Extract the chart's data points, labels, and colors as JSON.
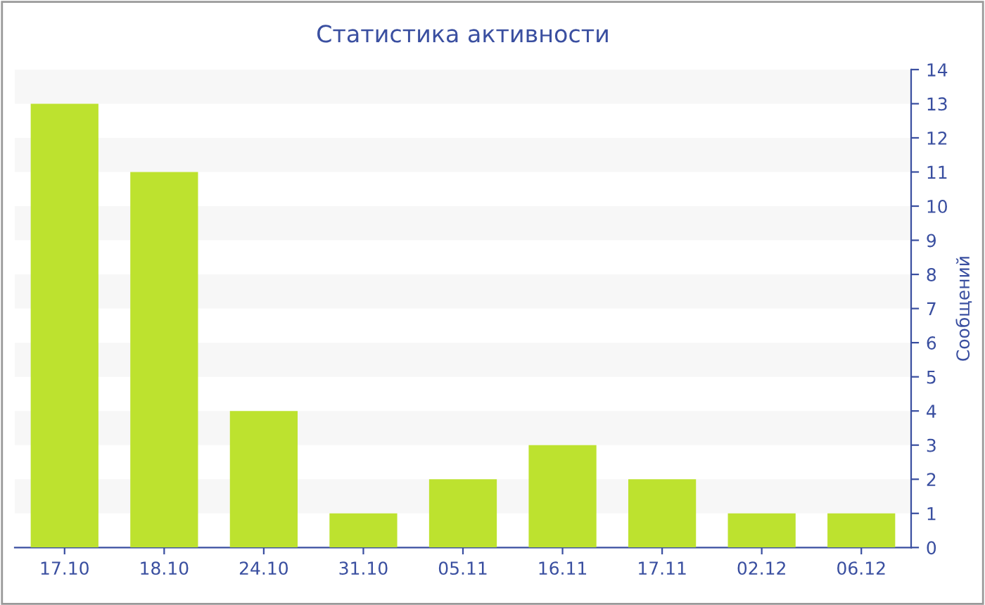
{
  "chart_data": {
    "type": "bar",
    "title": "Статистика активности",
    "ylabel": "Сообщений",
    "categories": [
      "17.10",
      "18.10",
      "24.10",
      "31.10",
      "05.11",
      "16.11",
      "17.11",
      "02.12",
      "06.12"
    ],
    "values": [
      13,
      11,
      4,
      1,
      2,
      3,
      2,
      1,
      1
    ],
    "color": "#bde22f",
    "ylim": [
      0,
      14
    ],
    "yticks": [
      0,
      1,
      2,
      3,
      4,
      5,
      6,
      7,
      8,
      9,
      10,
      11,
      12,
      13,
      14
    ],
    "bands": [
      {
        "axis": "y",
        "from": 1,
        "to": 2,
        "color": "#f7f7f7"
      },
      {
        "axis": "y",
        "from": 3,
        "to": 4,
        "color": "#f7f7f7"
      },
      {
        "axis": "y",
        "from": 5,
        "to": 6,
        "color": "#f7f7f7"
      },
      {
        "axis": "y",
        "from": 7,
        "to": 8,
        "color": "#f7f7f7"
      },
      {
        "axis": "y",
        "from": 9,
        "to": 10,
        "color": "#f7f7f7"
      },
      {
        "axis": "y",
        "from": 11,
        "to": 12,
        "color": "#f7f7f7"
      },
      {
        "axis": "y",
        "from": 13,
        "to": 14,
        "color": "#f7f7f7"
      }
    ]
  }
}
